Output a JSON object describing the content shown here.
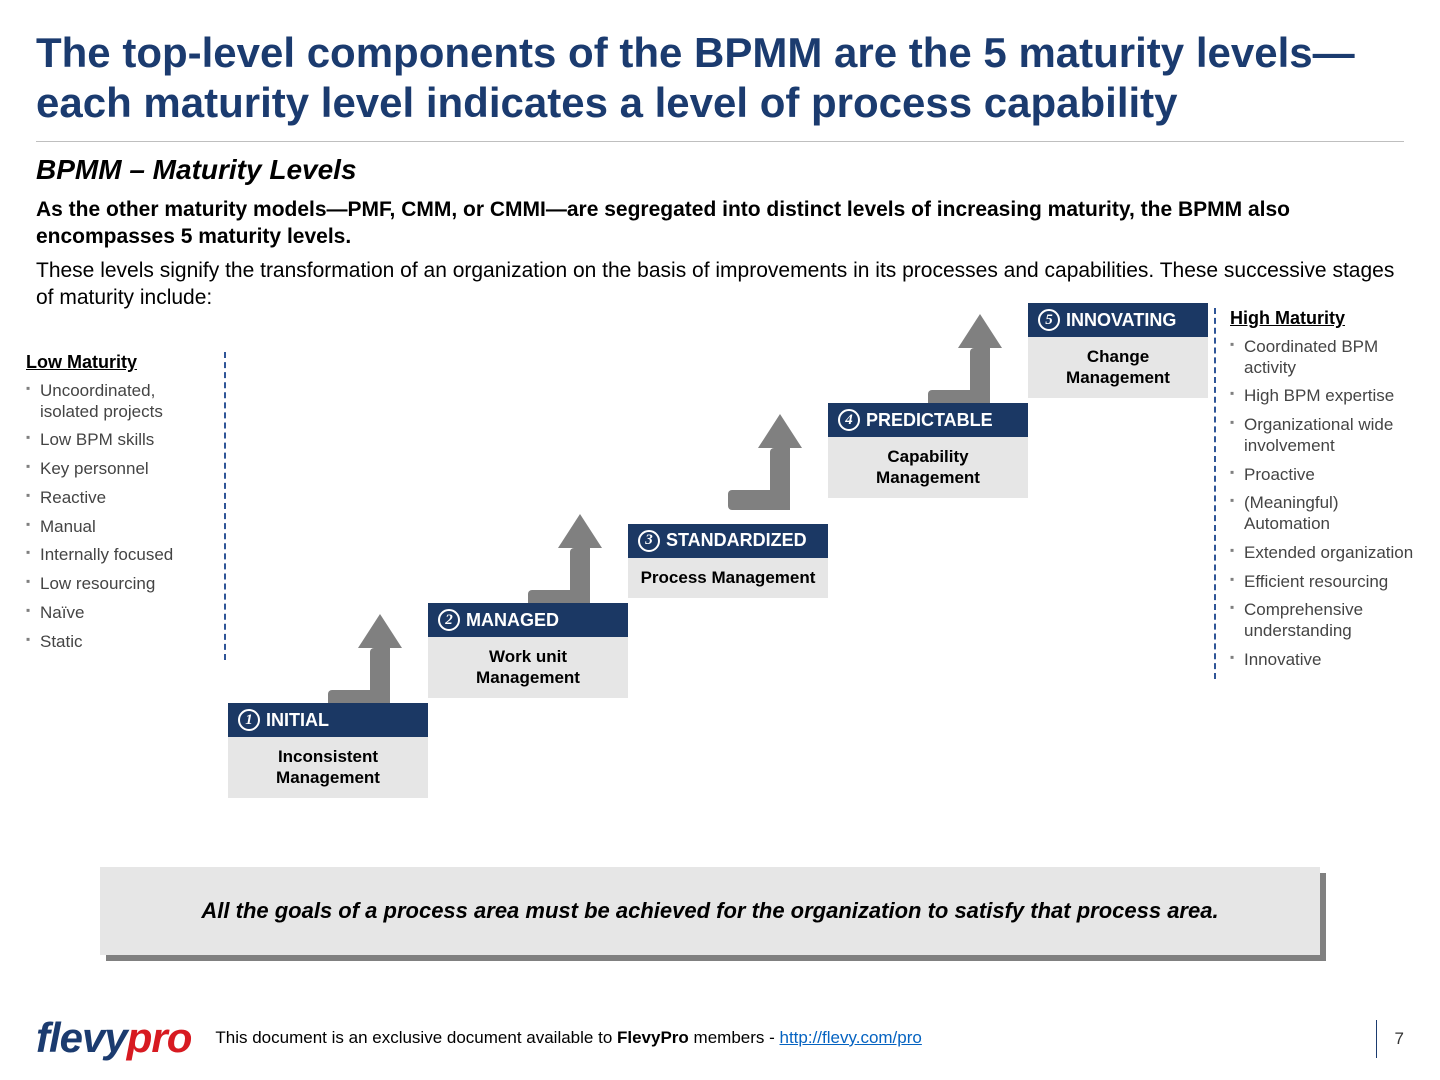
{
  "title": "The top-level components of the BPMM are the 5 maturity levels—each maturity level indicates a level of process capability",
  "subtitle": "BPMM – Maturity Levels",
  "lead_bold": "As the other maturity models—PMF, CMM, or CMMI—are segregated into distinct levels of increasing maturity, the BPMM also encompasses 5 maturity levels.",
  "lead": "These levels signify the transformation of an organization on the basis of improvements in its processes and capabilities.  These successive stages of maturity include:",
  "low": {
    "heading": "Low Maturity",
    "items": [
      "Uncoordinated, isolated projects",
      "Low BPM skills",
      "Key personnel",
      "Reactive",
      "Manual",
      "Internally focused",
      "Low resourcing",
      "Naïve",
      "Static"
    ]
  },
  "high": {
    "heading": "High Maturity",
    "items": [
      "Coordinated BPM activity",
      "High BPM expertise",
      "Organizational wide involvement",
      "Proactive",
      "(Meaningful) Automation",
      "Extended organization",
      "Efficient resourcing",
      "Comprehensive understanding",
      "Innovative"
    ]
  },
  "steps": [
    {
      "num": "1",
      "name": "INITIAL",
      "body": "Inconsistent Management"
    },
    {
      "num": "2",
      "name": "MANAGED",
      "body": "Work unit Management"
    },
    {
      "num": "3",
      "name": "STANDARDIZED",
      "body": "Process Management"
    },
    {
      "num": "4",
      "name": "PREDICTABLE",
      "body": "Capability Management"
    },
    {
      "num": "5",
      "name": "INNOVATING",
      "body": "Change Management"
    }
  ],
  "colors": {
    "header_bg": "#1b3864",
    "body_bg": "#e6e6e6",
    "arrow": "#808080",
    "title": "#1b3b6f",
    "dash": "#2f5597",
    "link": "#0563c1",
    "logo_a": "#1b3b6f",
    "logo_b": "#d71a21"
  },
  "callout": "All the goals of a process area must be achieved for the organization to satisfy that process area.",
  "footer": {
    "logo_a": "flevy",
    "logo_b": "pro",
    "text_pre": "This document is an exclusive document available to ",
    "text_bold": "FlevyPro",
    "text_mid": " members - ",
    "url": "http://flevy.com/pro",
    "page": "7"
  }
}
